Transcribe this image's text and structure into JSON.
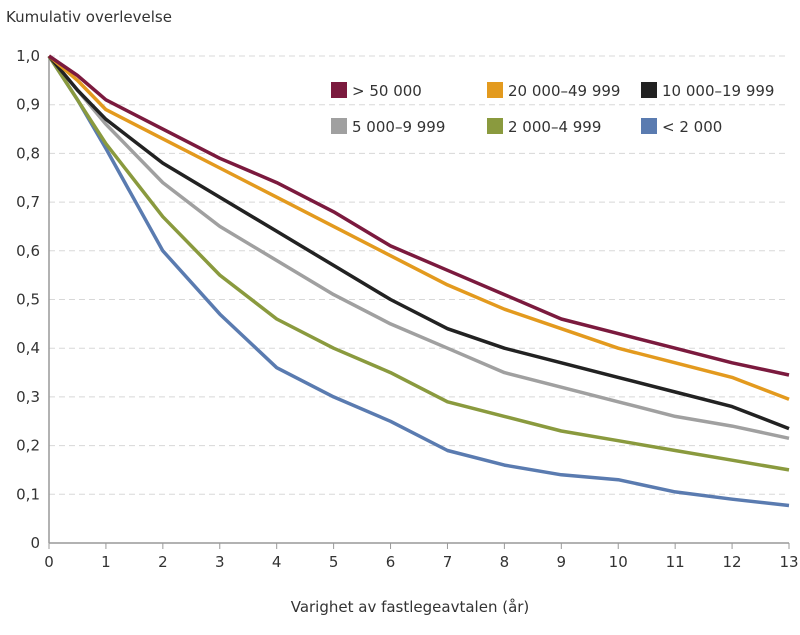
{
  "chart_data": {
    "type": "line",
    "title": "",
    "ylabel": "Kumulativ overlevelse",
    "xlabel": "Varighet av fastlegeavtalen (år)",
    "xlim": [
      0,
      13
    ],
    "ylim": [
      0,
      1.0
    ],
    "x_ticks": [
      "0",
      "1",
      "2",
      "3",
      "4",
      "5",
      "6",
      "7",
      "8",
      "9",
      "10",
      "11",
      "12",
      "13"
    ],
    "y_ticks": [
      "0",
      "0,1",
      "0,2",
      "0,3",
      "0,4",
      "0,5",
      "0,6",
      "0,7",
      "0,8",
      "0,9",
      "1,0"
    ],
    "grid": "horizontal dashed",
    "legend_placement": "top-right",
    "x": [
      0,
      0.5,
      1,
      2,
      3,
      4,
      5,
      6,
      7,
      8,
      9,
      10,
      11,
      12,
      13
    ],
    "series": [
      {
        "name": "> 50 000",
        "color": "#7b1a3e",
        "values": [
          1.0,
          0.96,
          0.91,
          0.85,
          0.79,
          0.74,
          0.68,
          0.61,
          0.56,
          0.51,
          0.46,
          0.43,
          0.4,
          0.37,
          0.345
        ]
      },
      {
        "name": "20 000–49 999",
        "color": "#e39a1e",
        "values": [
          1.0,
          0.95,
          0.89,
          0.83,
          0.77,
          0.71,
          0.65,
          0.59,
          0.53,
          0.48,
          0.44,
          0.4,
          0.37,
          0.34,
          0.295
        ]
      },
      {
        "name": "10 000–19 999",
        "color": "#222222",
        "values": [
          1.0,
          0.93,
          0.87,
          0.78,
          0.71,
          0.64,
          0.57,
          0.5,
          0.44,
          0.4,
          0.37,
          0.34,
          0.31,
          0.28,
          0.235
        ]
      },
      {
        "name": "5 000–9 999",
        "color": "#a0a0a0",
        "values": [
          1.0,
          0.93,
          0.86,
          0.74,
          0.65,
          0.58,
          0.51,
          0.45,
          0.4,
          0.35,
          0.32,
          0.29,
          0.26,
          0.24,
          0.215
        ]
      },
      {
        "name": "2 000–4 999",
        "color": "#8a9a3e",
        "values": [
          1.0,
          0.91,
          0.82,
          0.67,
          0.55,
          0.46,
          0.4,
          0.35,
          0.29,
          0.26,
          0.23,
          0.21,
          0.19,
          0.17,
          0.15
        ]
      },
      {
        "name": "< 2 000",
        "color": "#5a7bb0",
        "values": [
          1.0,
          0.91,
          0.81,
          0.6,
          0.47,
          0.36,
          0.3,
          0.25,
          0.19,
          0.16,
          0.14,
          0.13,
          0.105,
          0.09,
          0.077
        ]
      }
    ]
  }
}
